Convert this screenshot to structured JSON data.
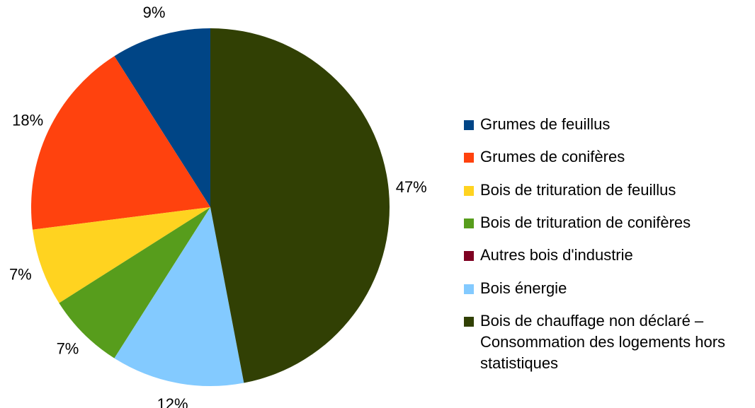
{
  "chart_data": {
    "type": "pie",
    "categories": [
      "Grumes de feuillus",
      "Grumes de conifères",
      "Bois de trituration de feuillus",
      "Bois de trituration de conifères",
      "Autres bois d'industrie",
      "Bois énergie",
      "Bois de chauffage non déclaré – Consommation des logements hors statistiques"
    ],
    "values": [
      9,
      18,
      7,
      7,
      0,
      12,
      47
    ],
    "value_labels": [
      "9%",
      "18%",
      "7%",
      "7%",
      null,
      "12%",
      "47%"
    ],
    "colors": [
      "#004586",
      "#ff420e",
      "#ffd320",
      "#579d1c",
      "#7e0021",
      "#83caff",
      "#314004"
    ],
    "legend": "right"
  }
}
